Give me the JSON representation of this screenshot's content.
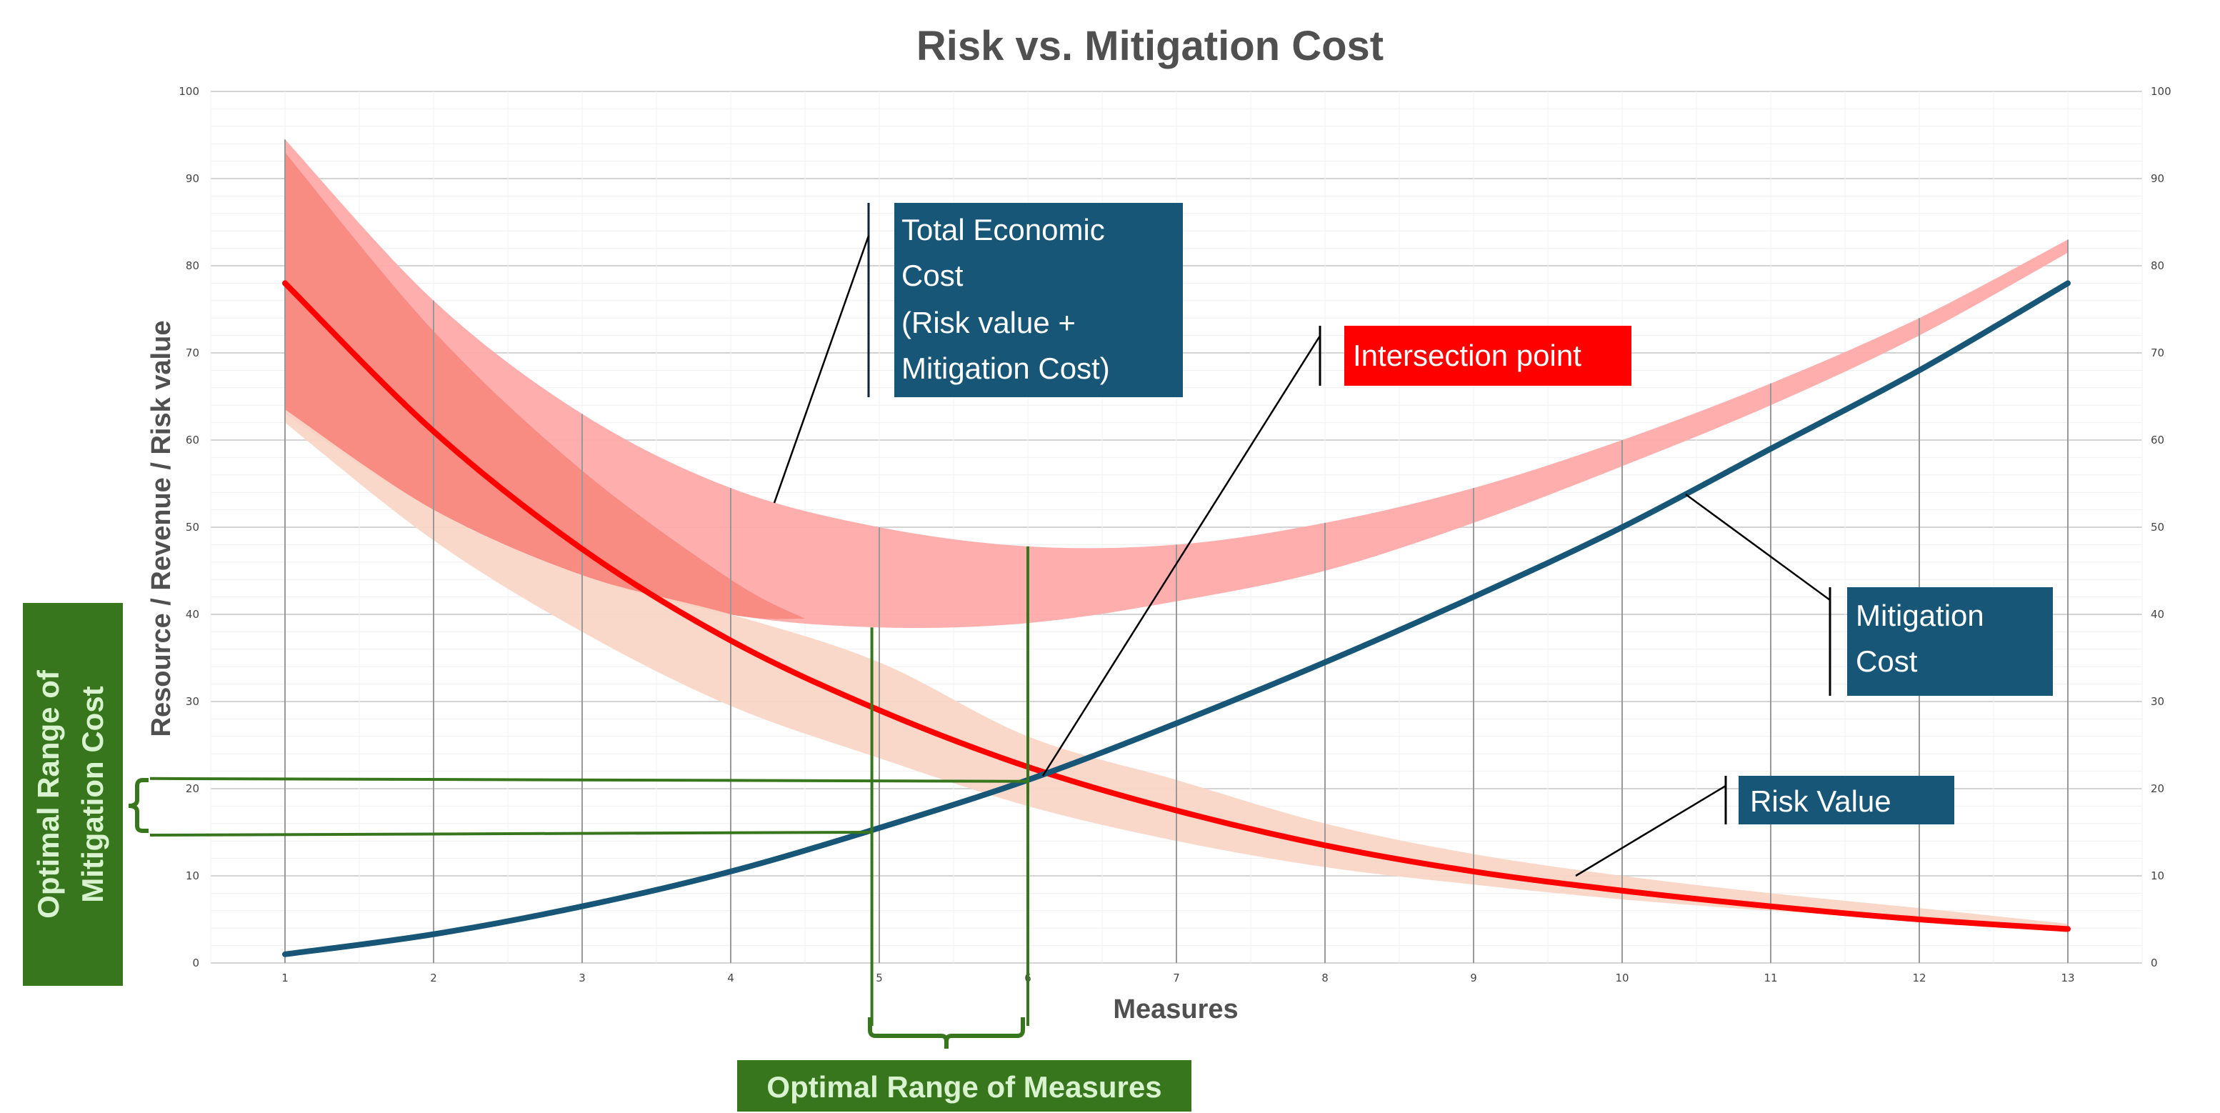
{
  "chart_data": {
    "type": "line",
    "title": "Risk vs. Mitigation Cost",
    "xlabel": "Measures",
    "ylabel": "Resource / Revenue /  Risk value",
    "xlim": [
      0.5,
      13.5
    ],
    "ylim": [
      0,
      100
    ],
    "x_ticks": [
      1,
      2,
      3,
      4,
      5,
      6,
      7,
      8,
      9,
      10,
      11,
      12,
      13
    ],
    "y_ticks": [
      0,
      10,
      20,
      30,
      40,
      50,
      60,
      70,
      80,
      90,
      100
    ],
    "y_ticks_right": [
      0,
      10,
      20,
      30,
      40,
      50,
      60,
      70,
      80,
      90,
      100
    ],
    "grid": true,
    "x": [
      1,
      2,
      3,
      4,
      5,
      6,
      7,
      8,
      9,
      10,
      11,
      12,
      13
    ],
    "series": [
      {
        "key": "risk",
        "values": [
          78,
          61,
          47.5,
          37,
          29,
          22.5,
          17.5,
          13.5,
          10.5,
          8.3,
          6.5,
          5,
          3.9
        ],
        "color": "#ff0000"
      },
      {
        "key": "mitigation",
        "values": [
          1,
          3.3,
          6.5,
          10.5,
          15.5,
          21,
          27.5,
          34.5,
          42,
          50,
          59,
          68,
          78
        ],
        "color": "#175676"
      }
    ],
    "bands": [
      {
        "key": "total_economic_cost",
        "x": [
          1,
          2,
          3,
          4,
          5,
          6,
          7,
          8,
          9,
          10,
          11,
          12,
          13
        ],
        "upper": [
          94.5,
          76,
          63,
          54.5,
          50,
          47.8,
          48,
          50.5,
          54.5,
          60,
          66.5,
          74,
          83
        ],
        "lower": [
          63,
          52,
          44.5,
          40,
          38.5,
          39,
          41.5,
          45,
          50.5,
          57,
          64,
          72,
          81.5
        ],
        "color": "#ffaaaa"
      },
      {
        "key": "risk_upper_overlap",
        "x": [
          1,
          2,
          3,
          4,
          4.5
        ],
        "upper": [
          93,
          72.5,
          56.5,
          44,
          39.5
        ],
        "lower": [
          63,
          52,
          44.5,
          40,
          39.5
        ],
        "color": "#f88a80"
      },
      {
        "key": "risk_range",
        "x": [
          1,
          2,
          3,
          4,
          5,
          6,
          7,
          8,
          9,
          10,
          11,
          12,
          13
        ],
        "upper": [
          63.5,
          52,
          44.5,
          40,
          34.5,
          26,
          21,
          16,
          12.5,
          10,
          8,
          6.3,
          4.5
        ],
        "lower": [
          62,
          48.5,
          38,
          29.5,
          23.5,
          18,
          14,
          11,
          9,
          7.3,
          6,
          5,
          3.5
        ],
        "color": "#f9d6c6"
      }
    ],
    "optimal_measures_range": [
      4.95,
      6
    ],
    "optimal_mitigation_cost_range": [
      15,
      21
    ],
    "intersection": {
      "x": 6.1,
      "y": 21.5
    }
  },
  "annotations": {
    "total_cost": [
      "Total Economic",
      "Cost",
      "(Risk value +",
      "Mitigation Cost)"
    ],
    "intersection": "Intersection point",
    "mitigation": [
      "Mitigation",
      "Cost"
    ],
    "risk": "Risk Value",
    "optimal_measures": "Optimal Range of Measures",
    "optimal_cost": [
      "Optimal Range of",
      "Mitigation Cost"
    ]
  },
  "colors": {
    "blue_box": "#175676",
    "red_box": "#ff0000",
    "green_box": "#38761d",
    "green_line": "#38761d",
    "grid": "#e4e4e4",
    "drop_line": "#999999"
  }
}
